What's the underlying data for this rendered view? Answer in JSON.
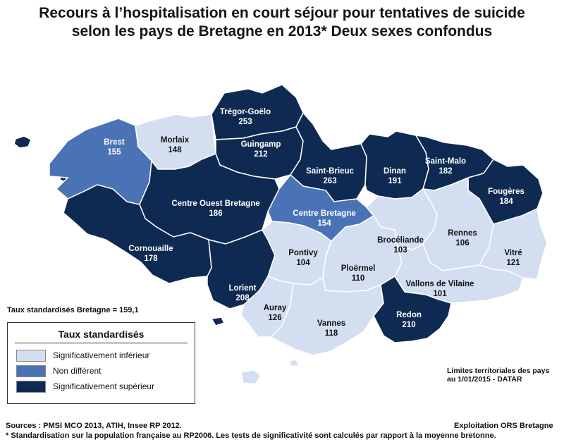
{
  "title_line1": "Recours à l’hospitalisation en court séjour pour tentatives de suicide",
  "title_line2": "selon les pays de Bretagne en 2013* Deux sexes confondus",
  "colors": {
    "inferieur": "#d3def0",
    "non_different": "#4a73b5",
    "superieur": "#0e2a52",
    "border": "#ffffff"
  },
  "regions": [
    {
      "name": "Brest",
      "value": "155",
      "category": "non_different"
    },
    {
      "name": "Morlaix",
      "value": "148",
      "category": "inferieur"
    },
    {
      "name": "Trégor-Goëlo",
      "value": "253",
      "category": "superieur"
    },
    {
      "name": "Guingamp",
      "value": "212",
      "category": "superieur"
    },
    {
      "name": "Saint-Brieuc",
      "value": "263",
      "category": "superieur"
    },
    {
      "name": "Dinan",
      "value": "191",
      "category": "superieur"
    },
    {
      "name": "Saint-Malo",
      "value": "182",
      "category": "superieur"
    },
    {
      "name": "Fougères",
      "value": "184",
      "category": "superieur"
    },
    {
      "name": "Centre Ouest Bretagne",
      "value": "186",
      "category": "superieur"
    },
    {
      "name": "Centre Bretagne",
      "value": "154",
      "category": "non_different"
    },
    {
      "name": "Cornouaille",
      "value": "178",
      "category": "superieur"
    },
    {
      "name": "Lorient",
      "value": "208",
      "category": "superieur"
    },
    {
      "name": "Pontivy",
      "value": "104",
      "category": "inferieur"
    },
    {
      "name": "Ploërmel",
      "value": "110",
      "category": "inferieur"
    },
    {
      "name": "Brocéliande",
      "value": "103",
      "category": "inferieur"
    },
    {
      "name": "Rennes",
      "value": "106",
      "category": "inferieur"
    },
    {
      "name": "Vitré",
      "value": "121",
      "category": "inferieur"
    },
    {
      "name": "Vallons de Vilaine",
      "value": "101",
      "category": "inferieur"
    },
    {
      "name": "Auray",
      "value": "126",
      "category": "inferieur"
    },
    {
      "name": "Vannes",
      "value": "118",
      "category": "inferieur"
    },
    {
      "name": "Redon",
      "value": "210",
      "category": "superieur"
    }
  ],
  "stat_label": "Taux standardisés Bretagne = 159,1",
  "legend": {
    "title": "Taux standardisés",
    "items": [
      {
        "label": "Significativement inférieur",
        "category": "inferieur"
      },
      {
        "label": "Non différent",
        "category": "non_different"
      },
      {
        "label": "Significativement supérieur",
        "category": "superieur"
      }
    ]
  },
  "limits_line1": "Limites territoriales des pays",
  "limits_line2": "au 1/01/2015 - DATAR",
  "sources": "Sources : PMSI MCO 2013, ATIH, Insee RP 2012.",
  "exploitation": "Exploitation ORS Bretagne",
  "footnote": "* Standardisation sur la population française au RP2006. Les tests de significativité sont calculés par rapport à la moyenne bretonne."
}
